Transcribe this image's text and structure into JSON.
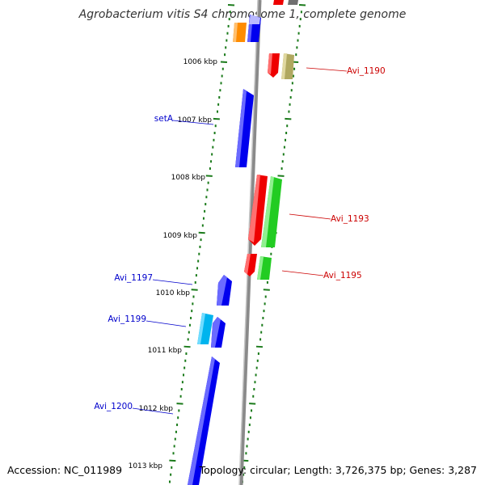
{
  "title": "Agrobacterium vitis S4 chromosome 1, complete genome",
  "accession": "Accession: NC_011989",
  "summary": "Topology: circular; Length: 3,726,375 bp; Genes: 3,287",
  "colors": {
    "forward_gene": "#0000ee",
    "forward_gene_alt": "#00b4ee",
    "forward_gene_other": "#ff8c00",
    "reverse_gene": "#ee0000",
    "reverse_gene_green": "#22cc22",
    "reverse_gene_khaki": "#b0a860",
    "forward_label": "#0000cc",
    "reverse_label": "#cc0000",
    "tick": "#1a7a1a",
    "backbone": "#8a8a8a"
  },
  "scale_labels": [
    "1006 kbp",
    "1007 kbp",
    "1008 kbp",
    "1009 kbp",
    "1010 kbp",
    "1011 kbp",
    "1012 kbp",
    "1013 kbp"
  ],
  "forward_gene_labels": [
    "setA",
    "Avi_1197",
    "Avi_1199",
    "Avi_1200"
  ],
  "reverse_gene_labels": [
    "Avi_1190",
    "Avi_1193",
    "Avi_1195"
  ]
}
